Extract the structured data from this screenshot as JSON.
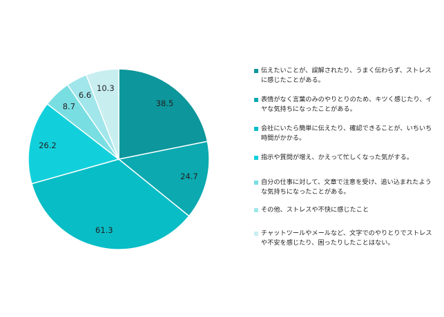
{
  "chart_data": {
    "type": "pie",
    "start": "12 o'clock",
    "direction": "clockwise",
    "legend_position": "right",
    "slices": [
      {
        "label": "伝えたいことが、誤解されたり、うまく伝わらず、ストレスに感じたことがある。",
        "value": 38.5,
        "value_label": "38.5",
        "color": "#0d969b"
      },
      {
        "label": "表情がなく言葉のみのやりとりのため、キツく感じたり、イヤな気持ちになったことがある。",
        "value": 24.7,
        "value_label": "24.7",
        "color": "#0ca9b0"
      },
      {
        "label": "会社にいたら簡単に伝えたり、確認できることが、いちいち時間がかかる。",
        "value": 61.3,
        "value_label": "61.3",
        "color": "#08bdc6"
      },
      {
        "label": "指示や質問が増え、かえって忙しくなった気がする。",
        "value": 26.2,
        "value_label": "26.2",
        "color": "#12d0db"
      },
      {
        "label": "自分の仕事に対して、文章で注意を受け、追い込まれたような気持ちになったことがある。",
        "value": 8.7,
        "value_label": "8.7",
        "color": "#79dee2"
      },
      {
        "label": "その他、ストレスや不快に感じたこと",
        "value": 6.6,
        "value_label": "6.6",
        "color": "#a1e6ea"
      },
      {
        "label": "チャットツールやメールなど、文字でのやりとりでストレスや不安を感じたり、困ったりしたことはない。",
        "value": 10.3,
        "value_label": "10.3",
        "color": "#c8eef0"
      }
    ]
  }
}
